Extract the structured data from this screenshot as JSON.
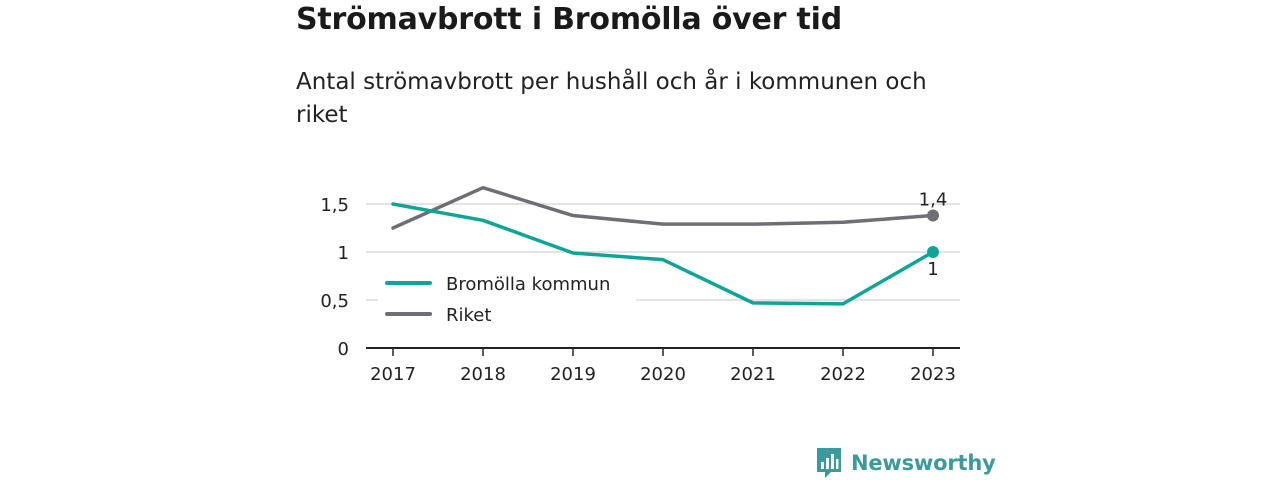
{
  "header": {
    "title": "Strömavbrott i Bromölla över tid",
    "subtitle": "Antal strömavbrott per hushåll och år i kommunen och riket"
  },
  "brand": {
    "name": "Newsworthy",
    "icon": "newsworthy-logo-icon",
    "color": "#3d9a9c"
  },
  "chart_data": {
    "type": "line",
    "x": [
      "2017",
      "2018",
      "2019",
      "2020",
      "2021",
      "2022",
      "2023"
    ],
    "series": [
      {
        "name": "Bromölla kommun",
        "color": "#0ea596",
        "values": [
          1.5,
          1.33,
          0.99,
          0.92,
          0.47,
          0.46,
          1.0
        ],
        "end_label": "1"
      },
      {
        "name": "Riket",
        "color": "#6f6e74",
        "values": [
          1.25,
          1.67,
          1.38,
          1.29,
          1.29,
          1.31,
          1.38
        ],
        "end_label": "1,4"
      }
    ],
    "yticks": [
      {
        "value": 0,
        "label": "0"
      },
      {
        "value": 0.5,
        "label": "0,5"
      },
      {
        "value": 1,
        "label": "1"
      },
      {
        "value": 1.5,
        "label": "1,5"
      }
    ],
    "ylim": [
      0,
      1.7
    ],
    "grid": true,
    "legend_position": "inside-left"
  }
}
